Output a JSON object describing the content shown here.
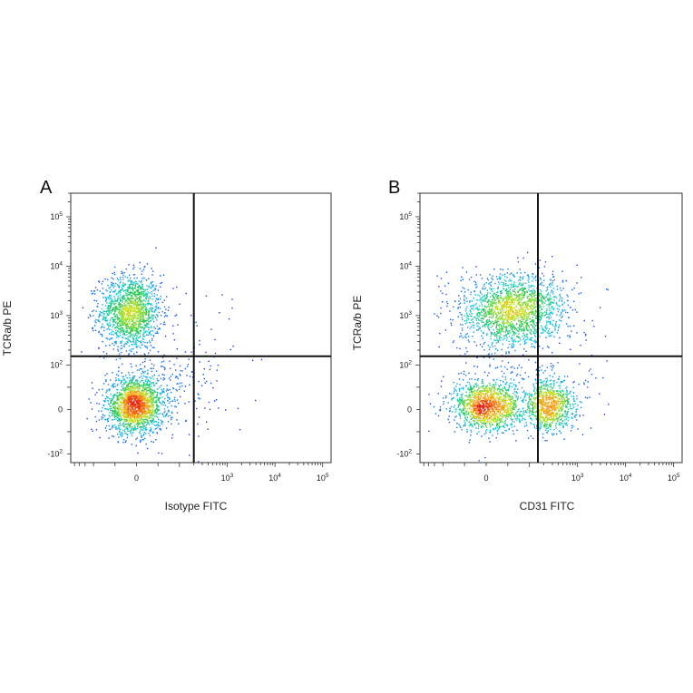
{
  "chart_data": [
    {
      "type": "scatter",
      "subtype": "flow-cytometry-density-dot-plot",
      "panel_label": "A",
      "xlabel": "Isotype FITC",
      "ylabel": "TCRa/b PE",
      "scale": "biexponential",
      "xlim": [
        -300,
        150000
      ],
      "ylim": [
        -150,
        300000
      ],
      "x_ticks": [
        {
          "base": "0",
          "exp": ""
        },
        {
          "base": "10",
          "exp": "3"
        },
        {
          "base": "10",
          "exp": "4"
        },
        {
          "base": "10",
          "exp": "5"
        }
      ],
      "y_ticks": [
        {
          "base": "-10",
          "exp": "2"
        },
        {
          "base": "0",
          "exp": ""
        },
        {
          "base": "10",
          "exp": "2"
        },
        {
          "base": "10",
          "exp": "3"
        },
        {
          "base": "10",
          "exp": "4"
        },
        {
          "base": "10",
          "exp": "5"
        }
      ],
      "quadrant_gate": {
        "x": 200,
        "y": 150
      },
      "populations": [
        {
          "x": -15,
          "y": 1200,
          "spread_x": 0.32,
          "spread_y": 0.38,
          "count": 1500
        },
        {
          "x": -5,
          "y": 10,
          "spread_x": 0.3,
          "spread_y": 0.28,
          "count": 1800
        },
        {
          "x": 80,
          "y": 60,
          "spread_x": 0.55,
          "spread_y": 0.45,
          "count": 180
        }
      ]
    },
    {
      "type": "scatter",
      "subtype": "flow-cytometry-density-dot-plot",
      "panel_label": "B",
      "xlabel": "CD31 FITC",
      "ylabel": "TCRa/b PE",
      "scale": "biexponential",
      "xlim": [
        -300,
        150000
      ],
      "ylim": [
        -150,
        300000
      ],
      "x_ticks": [
        {
          "base": "0",
          "exp": ""
        },
        {
          "base": "10",
          "exp": "3"
        },
        {
          "base": "10",
          "exp": "4"
        },
        {
          "base": "10",
          "exp": "5"
        }
      ],
      "y_ticks": [
        {
          "base": "-10",
          "exp": "2"
        },
        {
          "base": "0",
          "exp": ""
        },
        {
          "base": "10",
          "exp": "2"
        },
        {
          "base": "10",
          "exp": "3"
        },
        {
          "base": "10",
          "exp": "4"
        },
        {
          "base": "10",
          "exp": "5"
        }
      ],
      "quadrant_gate": {
        "x": 150,
        "y": 150
      },
      "populations": [
        {
          "x": 60,
          "y": 1300,
          "spread_x": 0.55,
          "spread_y": 0.36,
          "count": 1800
        },
        {
          "x": 0,
          "y": 10,
          "spread_x": 0.35,
          "spread_y": 0.25,
          "count": 1300
        },
        {
          "x": 260,
          "y": 10,
          "spread_x": 0.25,
          "spread_y": 0.25,
          "count": 800
        },
        {
          "x": 90,
          "y": 30,
          "spread_x": 0.7,
          "spread_y": 0.4,
          "count": 250
        }
      ]
    }
  ]
}
